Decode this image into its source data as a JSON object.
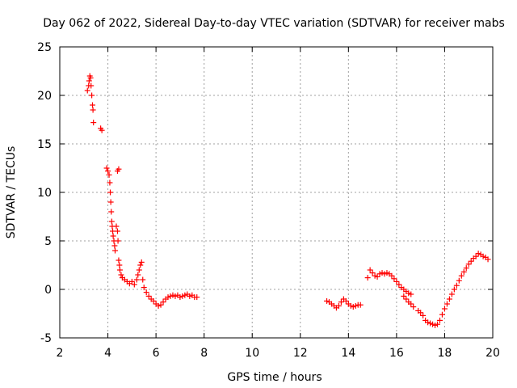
{
  "chart_data": {
    "type": "scatter",
    "title": "Day 062 of 2022, Sidereal Day-to-day VTEC variation (SDTVAR) for receiver mabs",
    "xlabel": "GPS time / hours",
    "ylabel": "SDTVAR / TECUs",
    "xlim": [
      2,
      20
    ],
    "ylim": [
      -5,
      25
    ],
    "xticks": [
      2,
      4,
      6,
      8,
      10,
      12,
      14,
      16,
      18,
      20
    ],
    "yticks": [
      -5,
      0,
      5,
      10,
      15,
      20,
      25
    ],
    "grid": true,
    "marker": "+",
    "color": "#ff0000",
    "series": [
      {
        "name": "SDTVAR",
        "points": [
          [
            3.15,
            20.5
          ],
          [
            3.2,
            21.0
          ],
          [
            3.22,
            21.5
          ],
          [
            3.25,
            22.0
          ],
          [
            3.28,
            21.8
          ],
          [
            3.3,
            21.0
          ],
          [
            3.33,
            20.0
          ],
          [
            3.36,
            19.0
          ],
          [
            3.38,
            18.5
          ],
          [
            3.4,
            17.2
          ],
          [
            3.7,
            16.6
          ],
          [
            3.75,
            16.4
          ],
          [
            3.95,
            12.5
          ],
          [
            4.0,
            12.2
          ],
          [
            4.05,
            11.8
          ],
          [
            4.08,
            11.0
          ],
          [
            4.1,
            10.0
          ],
          [
            4.12,
            9.0
          ],
          [
            4.14,
            8.0
          ],
          [
            4.16,
            7.0
          ],
          [
            4.18,
            6.5
          ],
          [
            4.2,
            6.0
          ],
          [
            4.22,
            5.5
          ],
          [
            4.25,
            5.0
          ],
          [
            4.28,
            4.5
          ],
          [
            4.3,
            4.0
          ],
          [
            4.35,
            6.5
          ],
          [
            4.4,
            6.0
          ],
          [
            4.42,
            5.0
          ],
          [
            4.45,
            3.0
          ],
          [
            4.48,
            2.5
          ],
          [
            4.5,
            2.0
          ],
          [
            4.4,
            12.2
          ],
          [
            4.45,
            12.4
          ],
          [
            4.55,
            1.5
          ],
          [
            4.6,
            1.2
          ],
          [
            4.7,
            1.0
          ],
          [
            4.8,
            0.8
          ],
          [
            4.9,
            0.6
          ],
          [
            5.0,
            0.8
          ],
          [
            5.1,
            0.5
          ],
          [
            5.2,
            1.0
          ],
          [
            5.25,
            1.5
          ],
          [
            5.3,
            2.0
          ],
          [
            5.35,
            2.5
          ],
          [
            5.4,
            2.8
          ],
          [
            5.45,
            1.0
          ],
          [
            5.5,
            0.2
          ],
          [
            5.6,
            -0.3
          ],
          [
            5.7,
            -0.7
          ],
          [
            5.8,
            -1.0
          ],
          [
            5.9,
            -1.2
          ],
          [
            6.0,
            -1.5
          ],
          [
            6.1,
            -1.7
          ],
          [
            6.2,
            -1.6
          ],
          [
            6.3,
            -1.3
          ],
          [
            6.4,
            -1.0
          ],
          [
            6.5,
            -0.8
          ],
          [
            6.6,
            -0.7
          ],
          [
            6.7,
            -0.6
          ],
          [
            6.8,
            -0.7
          ],
          [
            6.9,
            -0.6
          ],
          [
            7.0,
            -0.8
          ],
          [
            7.1,
            -0.7
          ],
          [
            7.2,
            -0.6
          ],
          [
            7.3,
            -0.5
          ],
          [
            7.4,
            -0.7
          ],
          [
            7.5,
            -0.6
          ],
          [
            7.6,
            -0.8
          ],
          [
            7.7,
            -0.8
          ],
          [
            13.1,
            -1.2
          ],
          [
            13.2,
            -1.3
          ],
          [
            13.3,
            -1.5
          ],
          [
            13.4,
            -1.7
          ],
          [
            13.5,
            -1.9
          ],
          [
            13.6,
            -1.7
          ],
          [
            13.7,
            -1.3
          ],
          [
            13.8,
            -1.0
          ],
          [
            13.9,
            -1.2
          ],
          [
            14.0,
            -1.5
          ],
          [
            14.1,
            -1.7
          ],
          [
            14.2,
            -1.8
          ],
          [
            14.3,
            -1.7
          ],
          [
            14.4,
            -1.6
          ],
          [
            14.5,
            -1.6
          ],
          [
            14.8,
            1.2
          ],
          [
            14.9,
            2.0
          ],
          [
            15.0,
            1.7
          ],
          [
            15.1,
            1.4
          ],
          [
            15.2,
            1.3
          ],
          [
            15.3,
            1.6
          ],
          [
            15.4,
            1.7
          ],
          [
            15.5,
            1.6
          ],
          [
            15.6,
            1.7
          ],
          [
            15.7,
            1.6
          ],
          [
            15.8,
            1.4
          ],
          [
            15.9,
            1.1
          ],
          [
            16.0,
            0.8
          ],
          [
            16.1,
            0.5
          ],
          [
            16.2,
            0.2
          ],
          [
            16.3,
            0.0
          ],
          [
            16.4,
            -0.2
          ],
          [
            16.5,
            -0.4
          ],
          [
            16.6,
            -0.5
          ],
          [
            16.3,
            -0.7
          ],
          [
            16.4,
            -1.0
          ],
          [
            16.5,
            -1.3
          ],
          [
            16.6,
            -1.5
          ],
          [
            16.7,
            -1.8
          ],
          [
            16.9,
            -2.2
          ],
          [
            17.0,
            -2.4
          ],
          [
            17.1,
            -2.7
          ],
          [
            17.2,
            -3.2
          ],
          [
            17.3,
            -3.4
          ],
          [
            17.4,
            -3.5
          ],
          [
            17.5,
            -3.6
          ],
          [
            17.6,
            -3.7
          ],
          [
            17.7,
            -3.6
          ],
          [
            17.8,
            -3.2
          ],
          [
            17.9,
            -2.6
          ],
          [
            18.0,
            -2.0
          ],
          [
            18.1,
            -1.5
          ],
          [
            18.2,
            -1.0
          ],
          [
            18.3,
            -0.5
          ],
          [
            18.4,
            0.0
          ],
          [
            18.5,
            0.4
          ],
          [
            18.6,
            0.9
          ],
          [
            18.7,
            1.4
          ],
          [
            18.8,
            1.8
          ],
          [
            18.9,
            2.2
          ],
          [
            19.0,
            2.6
          ],
          [
            19.1,
            2.9
          ],
          [
            19.2,
            3.2
          ],
          [
            19.3,
            3.4
          ],
          [
            19.4,
            3.7
          ],
          [
            19.5,
            3.6
          ],
          [
            19.6,
            3.4
          ],
          [
            19.7,
            3.3
          ],
          [
            19.8,
            3.1
          ]
        ]
      }
    ]
  }
}
